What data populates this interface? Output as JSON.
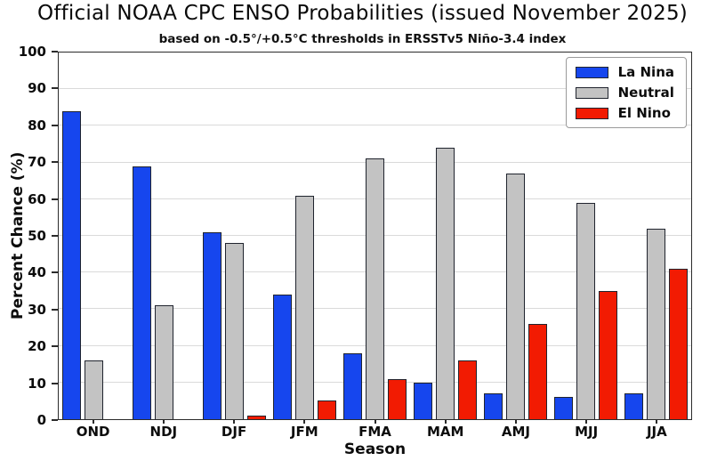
{
  "header": {
    "title": "Official NOAA CPC ENSO Probabilities (issued November 2025)",
    "subtitle": "based on -0.5°/+0.5°C thresholds in ERSSTv5 Niño-3.4 index"
  },
  "chart_data": {
    "type": "bar",
    "title": "Official NOAA CPC ENSO Probabilities (issued November 2025)",
    "subtitle": "based on -0.5°/+0.5°C thresholds in ERSSTv5 Niño-3.4 index",
    "xlabel": "Season",
    "ylabel": "Percent Chance (%)",
    "ylim": [
      0,
      100
    ],
    "yticks": [
      0,
      10,
      20,
      30,
      40,
      50,
      60,
      70,
      80,
      90,
      100
    ],
    "grid": true,
    "legend_position": "upper right",
    "categories": [
      "OND",
      "NDJ",
      "DJF",
      "JFM",
      "FMA",
      "MAM",
      "AMJ",
      "MJJ",
      "JJA"
    ],
    "series": [
      {
        "name": "La Nina",
        "color": "#1646ee",
        "values": [
          84,
          69,
          51,
          34,
          18,
          10,
          7,
          6,
          7
        ]
      },
      {
        "name": "Neutral",
        "color": "#c3c3c3",
        "values": [
          16,
          31,
          48,
          61,
          71,
          74,
          67,
          59,
          52
        ]
      },
      {
        "name": "El Nino",
        "color": "#f21b02",
        "values": [
          0,
          0,
          1,
          5,
          11,
          16,
          26,
          35,
          41
        ]
      }
    ]
  },
  "colors": {
    "la_nina": "#1646ee",
    "neutral": "#c3c3c3",
    "el_nino": "#f21b02",
    "gridline": "#dadada",
    "axis": "#2b2b2b",
    "background": "#ffffff"
  }
}
